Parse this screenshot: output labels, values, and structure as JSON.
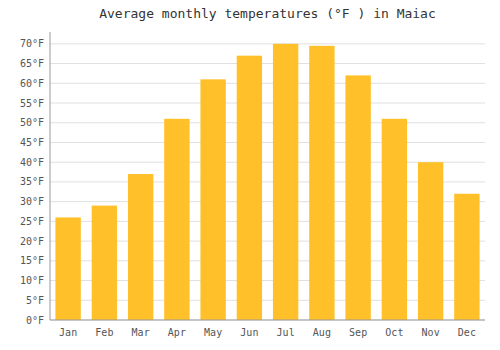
{
  "chart_data": {
    "type": "bar",
    "title": "Average monthly temperatures (°F ) in Maiac",
    "categories": [
      "Jan",
      "Feb",
      "Mar",
      "Apr",
      "May",
      "Jun",
      "Jul",
      "Aug",
      "Sep",
      "Oct",
      "Nov",
      "Dec"
    ],
    "values": [
      26,
      29,
      37,
      51,
      61,
      67,
      70,
      69.5,
      62,
      51,
      40,
      32
    ],
    "color": "#FFC02A",
    "ylim": [
      0,
      73
    ],
    "yticks": [
      {
        "value": 0,
        "label": "0°F"
      },
      {
        "value": 5,
        "label": "5°F"
      },
      {
        "value": 10,
        "label": "10°F"
      },
      {
        "value": 15,
        "label": "15°F"
      },
      {
        "value": 20,
        "label": "20°F"
      },
      {
        "value": 25,
        "label": "25°F"
      },
      {
        "value": 30,
        "label": "30°F"
      },
      {
        "value": 35,
        "label": "35°F"
      },
      {
        "value": 40,
        "label": "40°F"
      },
      {
        "value": 45,
        "label": "45°F"
      },
      {
        "value": 50,
        "label": "50°F"
      },
      {
        "value": 55,
        "label": "55°F"
      },
      {
        "value": 60,
        "label": "60°F"
      },
      {
        "value": 65,
        "label": "65°F"
      },
      {
        "value": 70,
        "label": "70°F"
      }
    ],
    "grid": true
  }
}
